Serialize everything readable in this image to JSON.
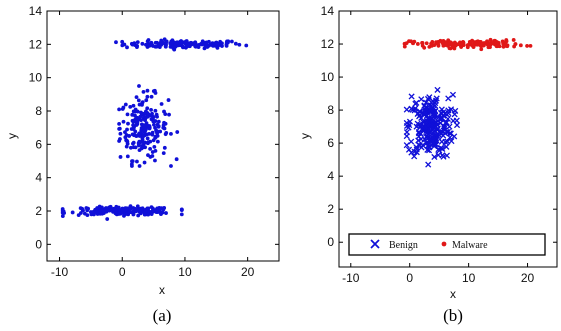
{
  "chart_data": [
    {
      "type": "scatter",
      "caption": "(a)",
      "xlabel": "x",
      "ylabel": "y",
      "xlim": [
        -12,
        25
      ],
      "ylim": [
        -1,
        14
      ],
      "xticks": [
        -10,
        0,
        10,
        20
      ],
      "yticks": [
        0,
        2,
        4,
        6,
        8,
        10,
        12,
        14
      ],
      "grid": false,
      "legend": null,
      "series": [
        {
          "color": "#1010d8",
          "marker": "dot",
          "clusters": [
            {
              "shape": "horizontal-band",
              "x_range": [
                -1,
                20.5
              ],
              "y_center": 12,
              "y_jitter": 0.12,
              "n": 150
            },
            {
              "shape": "blob",
              "x_center": 3.5,
              "y_center": 7.0,
              "x_spread": 1.9,
              "y_spread": 0.95,
              "x_range": [
                -0.5,
                9
              ],
              "y_range": [
                4.7,
                9.5
              ],
              "n": 220
            },
            {
              "shape": "horizontal-band",
              "x_range": [
                -9.5,
                9.5
              ],
              "y_center": 2,
              "y_jitter": 0.12,
              "n": 200
            }
          ]
        }
      ]
    },
    {
      "type": "scatter",
      "caption": "(b)",
      "xlabel": "x",
      "ylabel": "y",
      "xlim": [
        -12,
        25
      ],
      "ylim": [
        -1.5,
        14
      ],
      "xticks": [
        -10,
        0,
        10,
        20
      ],
      "yticks": [
        0,
        2,
        4,
        6,
        8,
        10,
        12,
        14
      ],
      "grid": false,
      "legend": {
        "placement": "bottom",
        "entries": [
          "Benign",
          "Malware"
        ]
      },
      "series": [
        {
          "name": "Benign",
          "color": "#1010d8",
          "marker": "x",
          "clusters": [
            {
              "shape": "blob",
              "x_center": 3.5,
              "y_center": 7.0,
              "x_spread": 1.9,
              "y_spread": 0.95,
              "x_range": [
                -0.5,
                9
              ],
              "y_range": [
                4.7,
                9.5
              ],
              "n": 240
            }
          ]
        },
        {
          "name": "Malware",
          "color": "#e01818",
          "marker": "dot",
          "clusters": [
            {
              "shape": "horizontal-band",
              "x_range": [
                -1,
                20.5
              ],
              "y_center": 12,
              "y_jitter": 0.12,
              "n": 150
            }
          ]
        }
      ]
    }
  ]
}
